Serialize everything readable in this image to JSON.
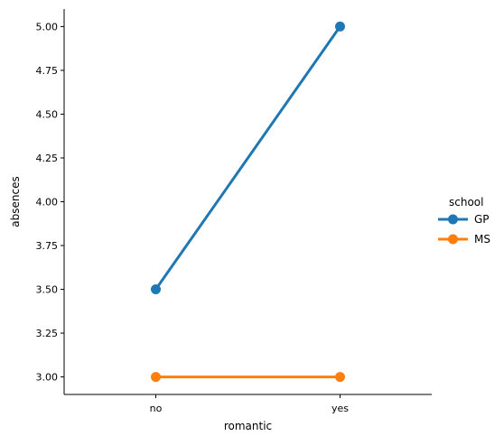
{
  "chart_data": {
    "type": "line",
    "title": "",
    "xlabel": "romantic",
    "ylabel": "absences",
    "categories": [
      "no",
      "yes"
    ],
    "ylim": [
      2.9,
      5.1
    ],
    "yticks": [
      3.0,
      3.25,
      3.5,
      3.75,
      4.0,
      4.25,
      4.5,
      4.75,
      5.0
    ],
    "ytick_labels": [
      "3.00",
      "3.25",
      "3.50",
      "3.75",
      "4.00",
      "4.25",
      "4.50",
      "4.75",
      "5.00"
    ],
    "grid": false,
    "legend_title": "school",
    "legend_position": "right",
    "series": [
      {
        "name": "GP",
        "values": [
          3.5,
          5.0
        ],
        "color": "#1f77b4"
      },
      {
        "name": "MS",
        "values": [
          3.0,
          3.0
        ],
        "color": "#ff7f0e"
      }
    ]
  }
}
